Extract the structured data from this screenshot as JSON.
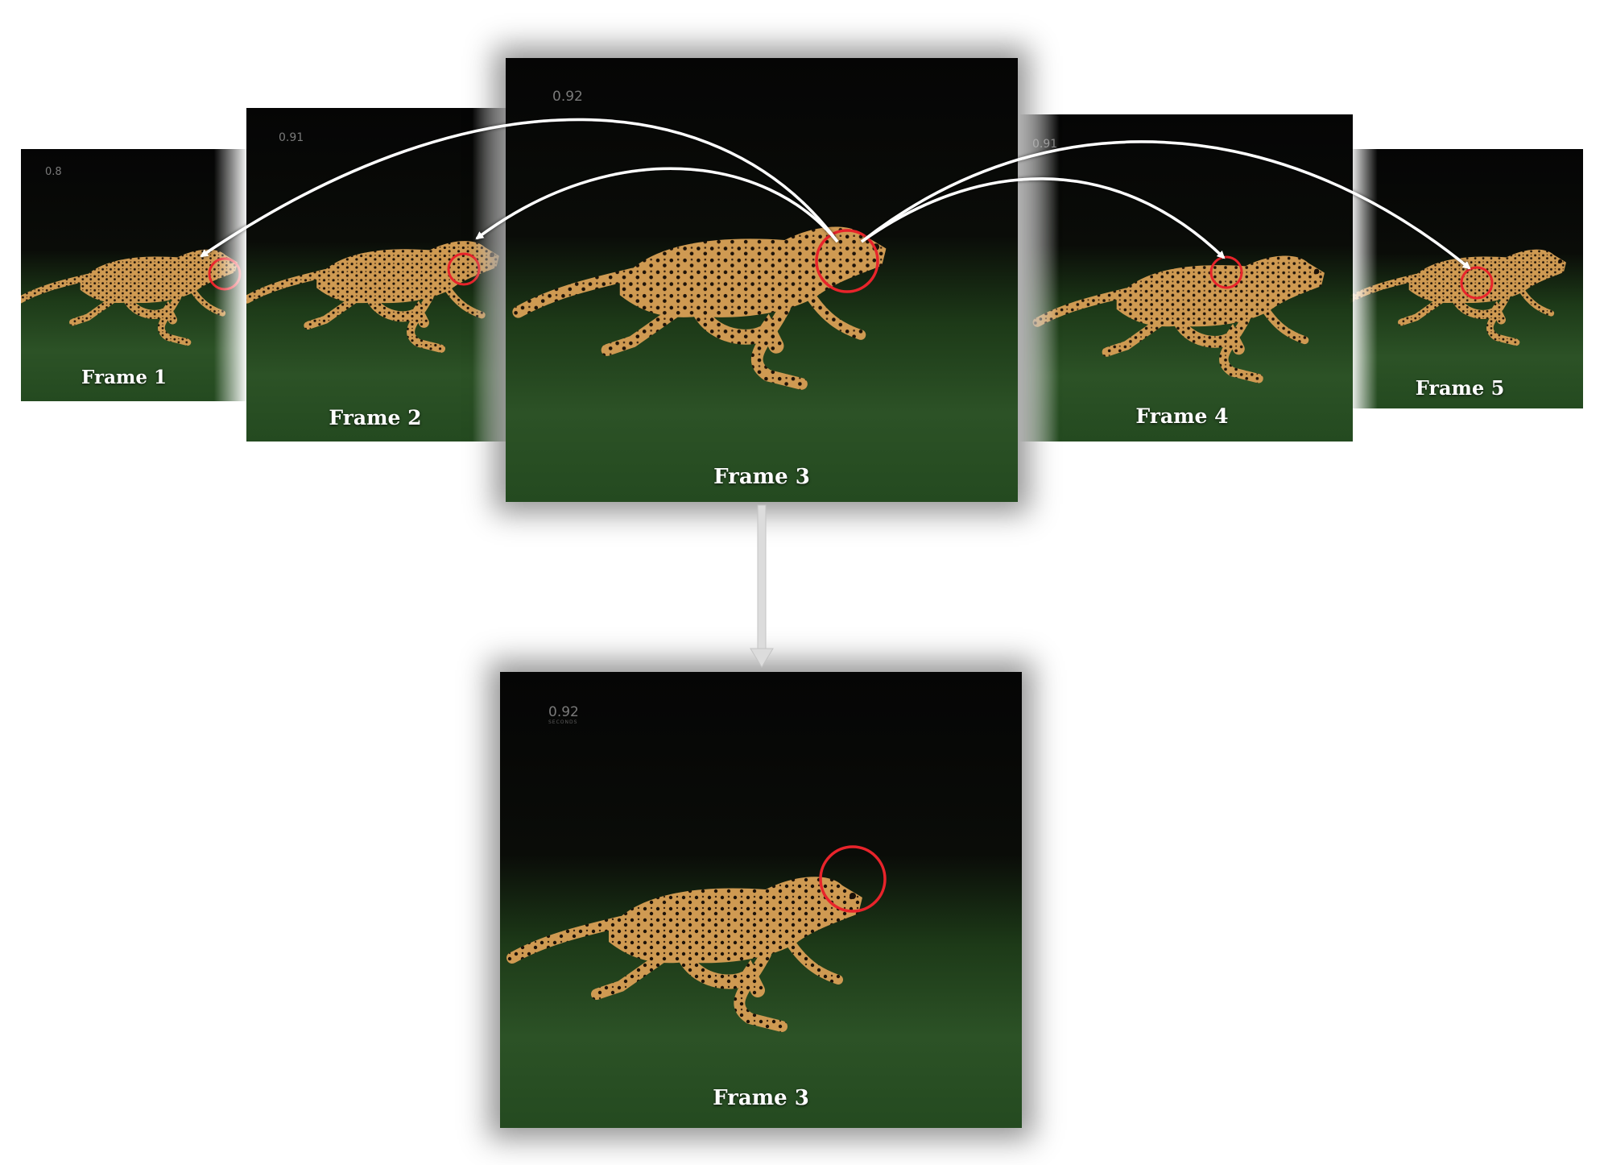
{
  "frames": [
    {
      "label": "Frame 1",
      "timer": "0.8"
    },
    {
      "label": "Frame 2",
      "timer": "0.91"
    },
    {
      "label": "Frame 3",
      "timer": "0.92"
    },
    {
      "label": "Frame 4",
      "timer": "0.91"
    },
    {
      "label": "Frame 5",
      "timer": ""
    }
  ],
  "output": {
    "label": "Frame 3",
    "timer": "0.92",
    "timer_unit": "SECONDS"
  },
  "colors": {
    "highlight_circle": "#e8242b",
    "arrow": "#ffffff",
    "down_arrow": "#dcdcdc",
    "fur": "#c98f45",
    "grass": "#2c5226"
  },
  "icons": {
    "target_marker": "red-circle-icon",
    "motion_link": "curved-arrow-icon",
    "result_link": "down-arrow-icon"
  }
}
